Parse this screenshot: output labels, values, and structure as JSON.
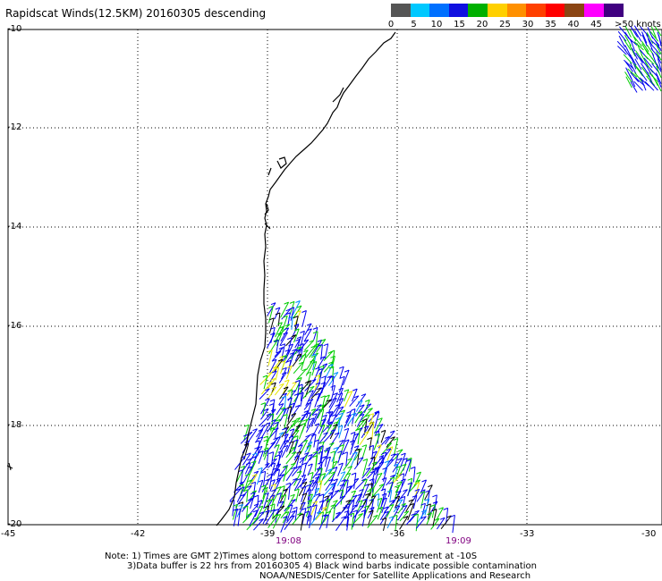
{
  "title": "Rapidscat Winds(12.5KM) 20160305 descending",
  "colorbar": {
    "labels": [
      "0",
      "5",
      "10",
      "15",
      "20",
      "25",
      "30",
      "35",
      "40",
      "45",
      ">50 knots"
    ],
    "colors": [
      "#555555",
      "#00c8ff",
      "#0070ff",
      "#1010e0",
      "#00b000",
      "#ffd000",
      "#ff9000",
      "#ff4000",
      "#ff0000",
      "#8b4513",
      "#ff00ff",
      "#400080"
    ]
  },
  "axes": {
    "lon_ticks": [
      "-45",
      "-42",
      "-39",
      "-36",
      "-33",
      "-30"
    ],
    "lat_ticks": [
      "-10",
      "-12",
      "-14",
      "-16",
      "-18",
      "-20"
    ]
  },
  "time_labels": [
    "19:08",
    "19:09"
  ],
  "notes": [
    "Note: 1) Times are GMT 2)Times along bottom correspond to measurement at -10S",
    "3)Data buffer is 22 hrs from 20160305 4) Black wind barbs indicate possible contamination",
    "NOAA/NESDIS/Center for Satellite Applications and Research"
  ],
  "barb_colors": {
    "blue": "#0000ee",
    "green": "#00cc00",
    "yellow": "#e6e600",
    "black": "#000000",
    "cyan": "#0090ff"
  }
}
